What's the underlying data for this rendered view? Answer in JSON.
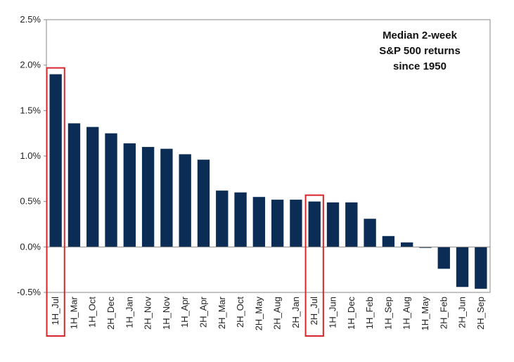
{
  "chart_data": {
    "type": "bar",
    "title": [
      "Median 2-week",
      "S&P 500 returns",
      "since 1950"
    ],
    "categories": [
      "1H_Jul",
      "1H_Mar",
      "1H_Oct",
      "2H_Dec",
      "1H_Jan",
      "2H_Nov",
      "1H_Nov",
      "1H_Apr",
      "2H_Apr",
      "2H_Mar",
      "2H_Oct",
      "2H_May",
      "2H_Aug",
      "2H_Jan",
      "2H_Jul",
      "1H_Jun",
      "1H_Dec",
      "1H_Feb",
      "1H_Sep",
      "1H_Aug",
      "1H_May",
      "2H_Feb",
      "2H_Jun",
      "2H_Sep"
    ],
    "values": [
      1.9,
      1.36,
      1.32,
      1.25,
      1.14,
      1.1,
      1.08,
      1.02,
      0.96,
      0.62,
      0.6,
      0.55,
      0.52,
      0.52,
      0.5,
      0.49,
      0.49,
      0.31,
      0.12,
      0.05,
      -0.01,
      -0.24,
      -0.44,
      -0.46
    ],
    "color": "#0b2c55",
    "ylim": [
      -0.5,
      2.5
    ],
    "yticks": [
      {
        "value": -0.5,
        "label": "-0.5%"
      },
      {
        "value": 0,
        "label": "0.0%"
      },
      {
        "value": 0.5,
        "label": "0.5%"
      },
      {
        "value": 1,
        "label": "1.0%"
      },
      {
        "value": 1.5,
        "label": "1.5%"
      },
      {
        "value": 2,
        "label": "2.0%"
      },
      {
        "value": 2.5,
        "label": "2.5%"
      }
    ],
    "grid": false,
    "highlight": [
      "1H_Jul",
      "2H_Jul"
    ],
    "highlight_color": "#d9262c"
  }
}
